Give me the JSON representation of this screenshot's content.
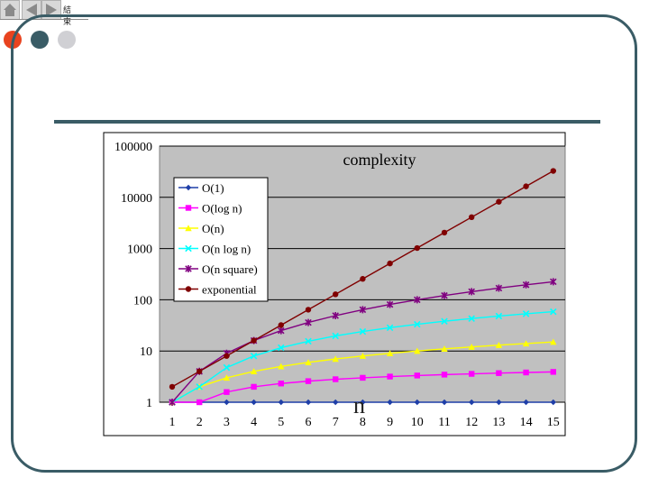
{
  "slide": {
    "nav_label": "結束",
    "n_label": "n"
  },
  "colors": {
    "frame": "#3a5c66",
    "dot_red": "#e8431f",
    "dot_teal": "#3a5c66",
    "dot_gray": "#d0d0d4"
  },
  "chart_data": {
    "type": "line",
    "title": "complexity",
    "xlabel": "n",
    "ylabel": "",
    "y_scale": "log",
    "ylim": [
      1,
      100000
    ],
    "y_ticks": [
      1,
      10,
      100,
      1000,
      10000,
      100000
    ],
    "y_tick_labels": [
      "1",
      "10",
      "100",
      "1000",
      "10000",
      "100000"
    ],
    "x": [
      1,
      2,
      3,
      4,
      5,
      6,
      7,
      8,
      9,
      10,
      11,
      12,
      13,
      14,
      15
    ],
    "x_tick_labels": [
      "1",
      "2",
      "3",
      "4",
      "5",
      "6",
      "7",
      "8",
      "9",
      "10",
      "11",
      "12",
      "13",
      "14",
      "15"
    ],
    "legend_position": "top-left",
    "series": [
      {
        "name": "O(1)",
        "color": "#1f3fa8",
        "marker": "diamond",
        "values": [
          1,
          1,
          1,
          1,
          1,
          1,
          1,
          1,
          1,
          1,
          1,
          1,
          1,
          1,
          1
        ]
      },
      {
        "name": "O(log n)",
        "color": "#ff00ff",
        "marker": "square",
        "values": [
          1,
          1,
          1.58,
          2,
          2.32,
          2.58,
          2.81,
          3,
          3.17,
          3.32,
          3.46,
          3.58,
          3.7,
          3.81,
          3.91
        ]
      },
      {
        "name": "O(n)",
        "color": "#ffff00",
        "marker": "triangle",
        "values": [
          1,
          2,
          3,
          4,
          5,
          6,
          7,
          8,
          9,
          10,
          11,
          12,
          13,
          14,
          15
        ]
      },
      {
        "name": "O(n log n)",
        "color": "#00ffff",
        "marker": "x",
        "values": [
          1,
          2,
          4.75,
          8,
          11.6,
          15.5,
          19.7,
          24,
          28.5,
          33.2,
          38.1,
          43,
          48.1,
          53.3,
          58.6
        ]
      },
      {
        "name": "O(n square)",
        "color": "#800080",
        "marker": "star",
        "values": [
          1,
          4,
          9,
          16,
          25,
          36,
          49,
          64,
          81,
          100,
          121,
          144,
          169,
          196,
          225
        ]
      },
      {
        "name": "exponential",
        "color": "#800000",
        "marker": "circle",
        "values": [
          2,
          4,
          8,
          16,
          32,
          64,
          128,
          256,
          512,
          1024,
          2048,
          4096,
          8192,
          16384,
          32768
        ]
      }
    ]
  }
}
